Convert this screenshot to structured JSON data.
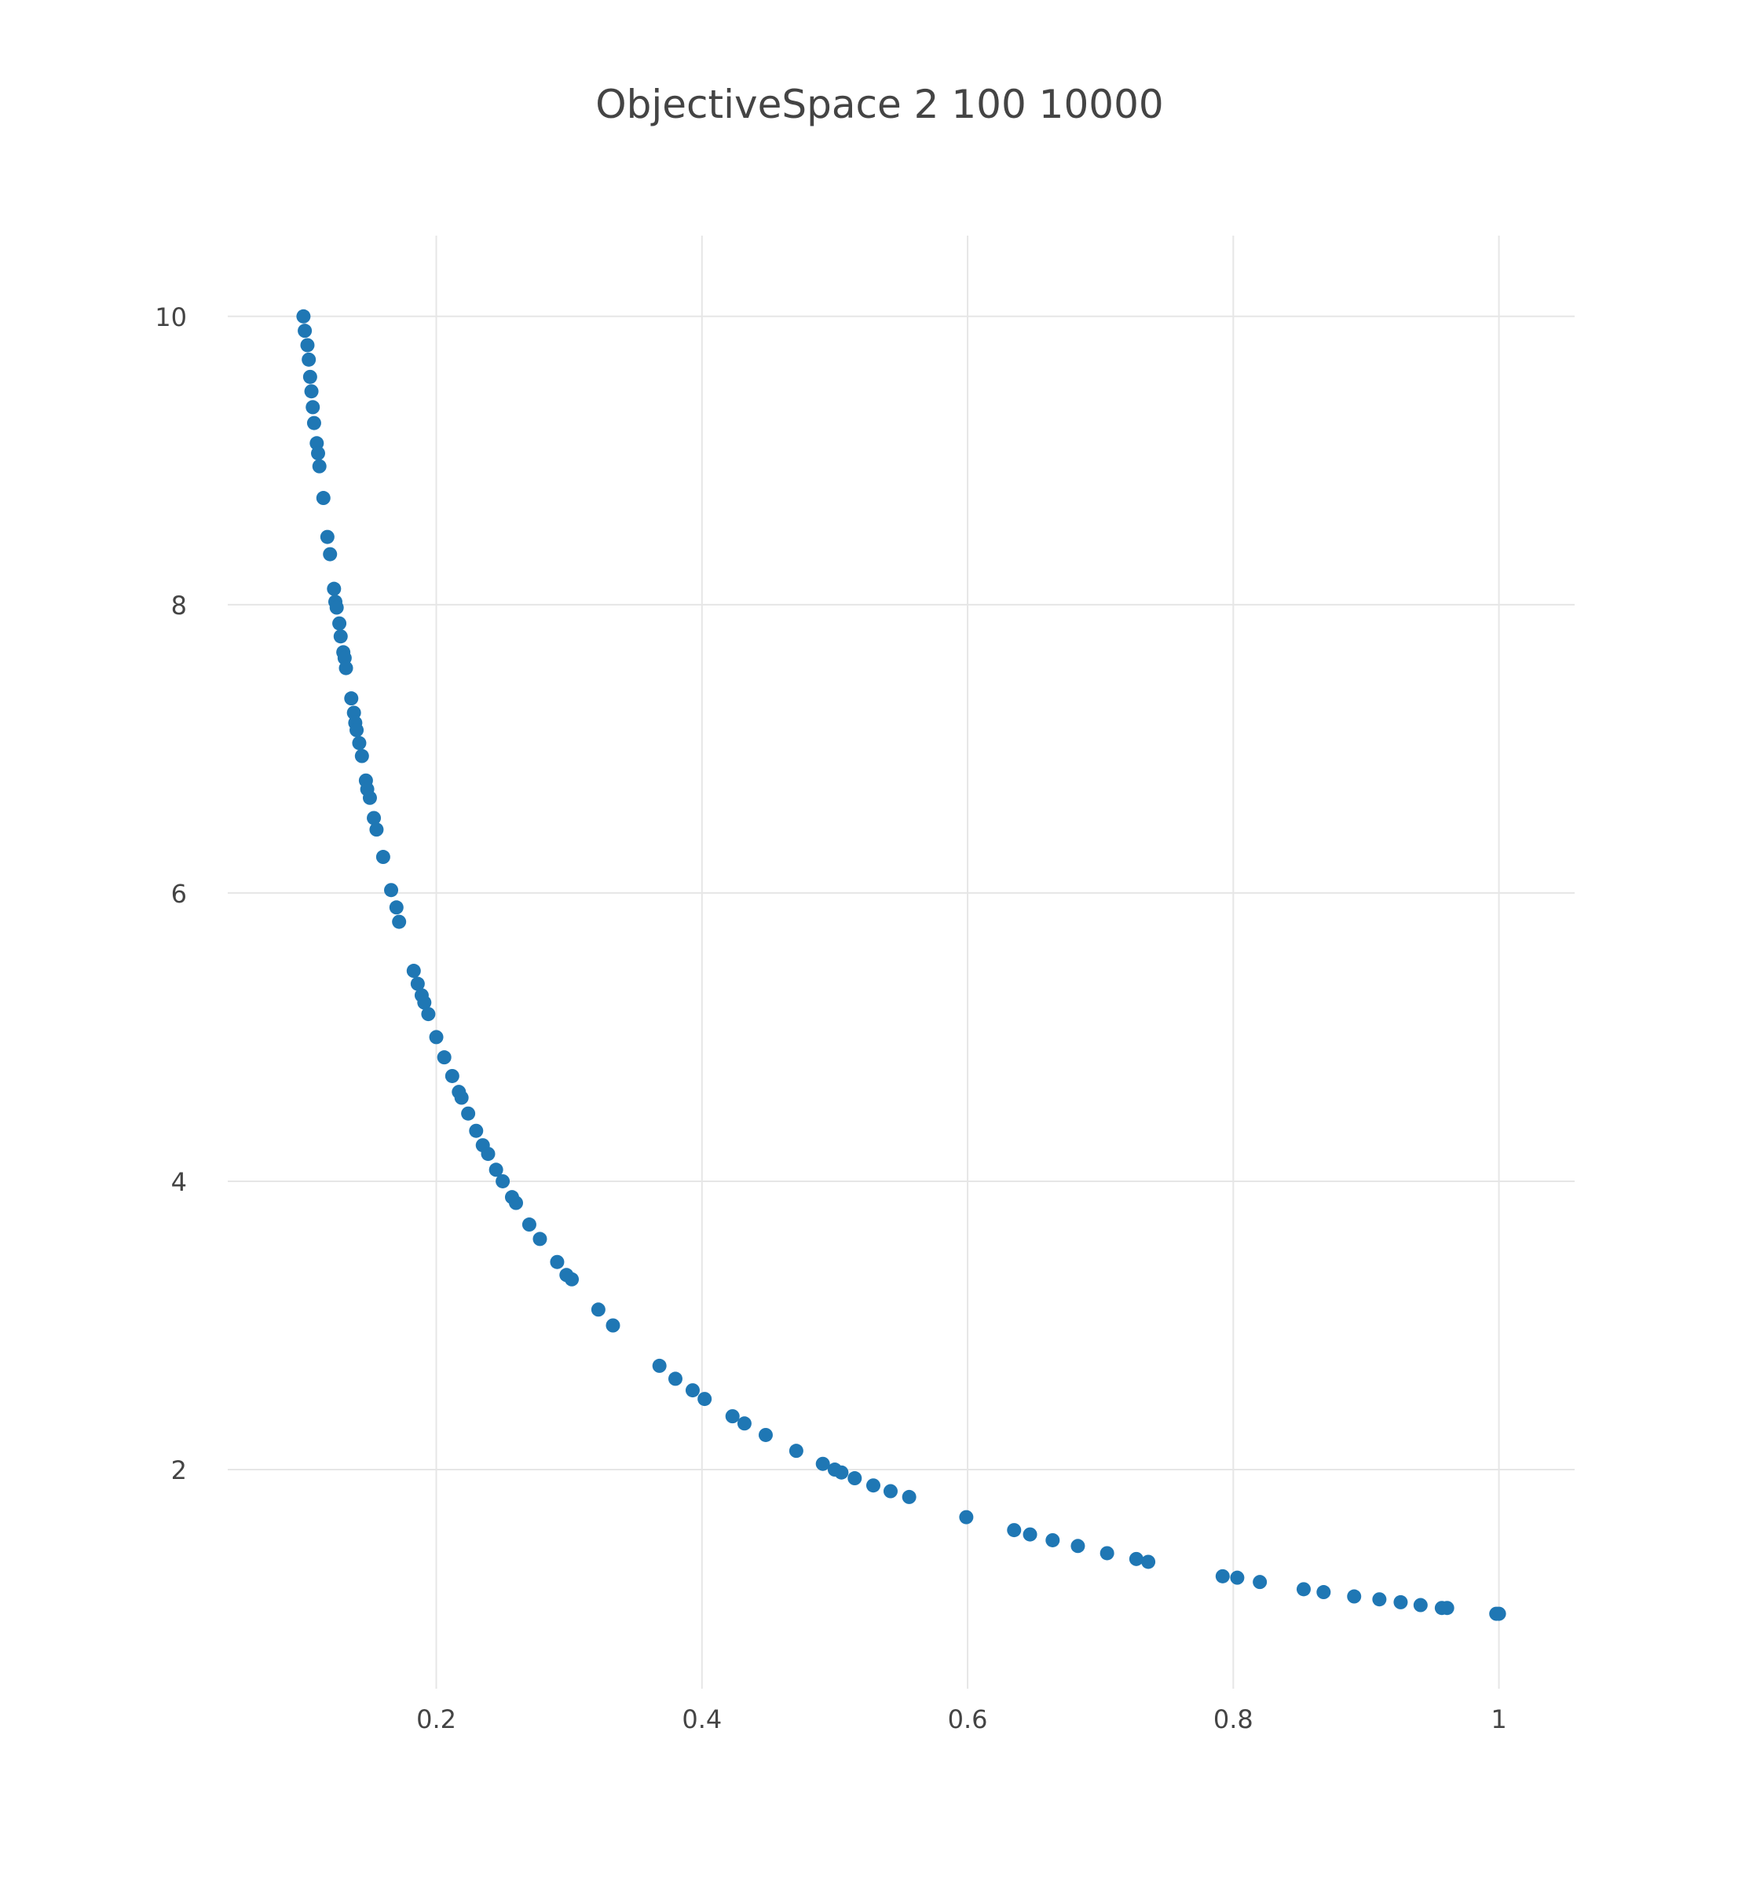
{
  "chart_data": {
    "type": "scatter",
    "title": "ObjectiveSpace 2 100 10000",
    "xlabel": "",
    "ylabel": "",
    "xlim": [
      0.043,
      1.057
    ],
    "ylim": [
      0.48,
      10.56
    ],
    "grid": true,
    "x_ticks": [
      0.2,
      0.4,
      0.6,
      0.8,
      1
    ],
    "x_tick_labels": [
      "0.2",
      "0.4",
      "0.6",
      "0.8",
      "1"
    ],
    "y_ticks": [
      2,
      4,
      6,
      8,
      10
    ],
    "y_tick_labels": [
      "2",
      "4",
      "6",
      "8",
      "10"
    ],
    "marker_color": "#1f77b4",
    "points": [
      [
        0.1,
        10.0
      ],
      [
        0.101,
        9.9
      ],
      [
        0.103,
        9.8
      ],
      [
        0.104,
        9.7
      ],
      [
        0.105,
        9.58
      ],
      [
        0.106,
        9.48
      ],
      [
        0.107,
        9.37
      ],
      [
        0.108,
        9.26
      ],
      [
        0.11,
        9.12
      ],
      [
        0.111,
        9.05
      ],
      [
        0.112,
        8.96
      ],
      [
        0.115,
        8.74
      ],
      [
        0.118,
        8.47
      ],
      [
        0.12,
        8.35
      ],
      [
        0.123,
        8.11
      ],
      [
        0.124,
        8.02
      ],
      [
        0.125,
        7.98
      ],
      [
        0.127,
        7.87
      ],
      [
        0.128,
        7.78
      ],
      [
        0.13,
        7.67
      ],
      [
        0.131,
        7.63
      ],
      [
        0.132,
        7.56
      ],
      [
        0.136,
        7.35
      ],
      [
        0.138,
        7.25
      ],
      [
        0.139,
        7.18
      ],
      [
        0.14,
        7.13
      ],
      [
        0.142,
        7.04
      ],
      [
        0.144,
        6.95
      ],
      [
        0.147,
        6.78
      ],
      [
        0.148,
        6.72
      ],
      [
        0.15,
        6.66
      ],
      [
        0.153,
        6.52
      ],
      [
        0.155,
        6.44
      ],
      [
        0.16,
        6.25
      ],
      [
        0.166,
        6.02
      ],
      [
        0.17,
        5.9
      ],
      [
        0.172,
        5.8
      ],
      [
        0.183,
        5.46
      ],
      [
        0.186,
        5.37
      ],
      [
        0.189,
        5.29
      ],
      [
        0.191,
        5.24
      ],
      [
        0.194,
        5.16
      ],
      [
        0.2,
        5.0
      ],
      [
        0.206,
        4.86
      ],
      [
        0.212,
        4.73
      ],
      [
        0.217,
        4.62
      ],
      [
        0.219,
        4.58
      ],
      [
        0.224,
        4.47
      ],
      [
        0.23,
        4.35
      ],
      [
        0.235,
        4.25
      ],
      [
        0.239,
        4.19
      ],
      [
        0.245,
        4.08
      ],
      [
        0.25,
        4.0
      ],
      [
        0.257,
        3.89
      ],
      [
        0.26,
        3.85
      ],
      [
        0.27,
        3.7
      ],
      [
        0.278,
        3.6
      ],
      [
        0.291,
        3.44
      ],
      [
        0.298,
        3.35
      ],
      [
        0.302,
        3.32
      ],
      [
        0.322,
        3.11
      ],
      [
        0.333,
        3.0
      ],
      [
        0.368,
        2.72
      ],
      [
        0.38,
        2.63
      ],
      [
        0.393,
        2.55
      ],
      [
        0.402,
        2.49
      ],
      [
        0.423,
        2.37
      ],
      [
        0.432,
        2.32
      ],
      [
        0.448,
        2.24
      ],
      [
        0.471,
        2.13
      ],
      [
        0.491,
        2.04
      ],
      [
        0.5,
        2.0
      ],
      [
        0.505,
        1.98
      ],
      [
        0.515,
        1.94
      ],
      [
        0.529,
        1.89
      ],
      [
        0.542,
        1.85
      ],
      [
        0.556,
        1.81
      ],
      [
        0.599,
        1.67
      ],
      [
        0.635,
        1.58
      ],
      [
        0.647,
        1.55
      ],
      [
        0.664,
        1.51
      ],
      [
        0.683,
        1.47
      ],
      [
        0.705,
        1.42
      ],
      [
        0.727,
        1.38
      ],
      [
        0.736,
        1.36
      ],
      [
        0.792,
        1.26
      ],
      [
        0.803,
        1.25
      ],
      [
        0.82,
        1.22
      ],
      [
        0.853,
        1.17
      ],
      [
        0.868,
        1.15
      ],
      [
        0.891,
        1.12
      ],
      [
        0.91,
        1.1
      ],
      [
        0.926,
        1.08
      ],
      [
        0.941,
        1.06
      ],
      [
        0.957,
        1.04
      ],
      [
        0.961,
        1.04
      ],
      [
        0.998,
        1.0
      ],
      [
        1.0,
        1.0
      ]
    ]
  }
}
